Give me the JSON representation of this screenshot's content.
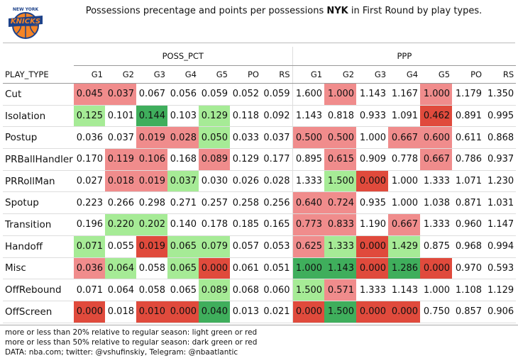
{
  "header": {
    "logo_top": "NEW YORK",
    "logo_text": "KNICKS",
    "title_before": "Possessions precentage and points per possessions ",
    "team": "NYK",
    "title_after": " in First Round by play types."
  },
  "table": {
    "groups": [
      "POSS_PCT",
      "PPP"
    ],
    "columns": [
      "PLAY_TYPE",
      "G1",
      "G2",
      "G3",
      "G4",
      "G5",
      "PO",
      "RS",
      "G1",
      "G2",
      "G3",
      "G4",
      "G5",
      "PO",
      "RS"
    ],
    "rows": [
      [
        "Cut",
        "0.045",
        "0.037",
        "0.067",
        "0.056",
        "0.059",
        "0.052",
        "0.059",
        "1.600",
        "1.000",
        "1.143",
        "1.167",
        "1.000",
        "1.179",
        "1.350"
      ],
      [
        "Isolation",
        "0.125",
        "0.101",
        "0.144",
        "0.103",
        "0.129",
        "0.118",
        "0.092",
        "1.143",
        "0.818",
        "0.933",
        "1.091",
        "0.462",
        "0.891",
        "0.995"
      ],
      [
        "Postup",
        "0.036",
        "0.037",
        "0.019",
        "0.028",
        "0.050",
        "0.033",
        "0.037",
        "0.500",
        "0.500",
        "1.000",
        "0.667",
        "0.600",
        "0.611",
        "0.868"
      ],
      [
        "PRBallHandler",
        "0.170",
        "0.119",
        "0.106",
        "0.168",
        "0.089",
        "0.129",
        "0.177",
        "0.895",
        "0.615",
        "0.909",
        "0.778",
        "0.667",
        "0.786",
        "0.937"
      ],
      [
        "PRRollMan",
        "0.027",
        "0.018",
        "0.019",
        "0.037",
        "0.030",
        "0.026",
        "0.028",
        "1.333",
        "1.500",
        "0.000",
        "1.000",
        "1.333",
        "1.071",
        "1.230"
      ],
      [
        "Spotup",
        "0.223",
        "0.266",
        "0.298",
        "0.271",
        "0.257",
        "0.258",
        "0.256",
        "0.640",
        "0.724",
        "0.935",
        "1.000",
        "1.038",
        "0.871",
        "1.031"
      ],
      [
        "Transition",
        "0.196",
        "0.220",
        "0.202",
        "0.140",
        "0.178",
        "0.185",
        "0.165",
        "0.773",
        "0.833",
        "1.190",
        "0.667",
        "1.333",
        "0.960",
        "1.147"
      ],
      [
        "Handoff",
        "0.071",
        "0.055",
        "0.019",
        "0.065",
        "0.079",
        "0.057",
        "0.053",
        "0.625",
        "1.333",
        "0.000",
        "1.429",
        "0.875",
        "0.968",
        "0.994"
      ],
      [
        "Misc",
        "0.036",
        "0.064",
        "0.058",
        "0.065",
        "0.000",
        "0.061",
        "0.051",
        "1.000",
        "1.143",
        "0.000",
        "1.286",
        "0.000",
        "0.970",
        "0.593"
      ],
      [
        "OffRebound",
        "0.071",
        "0.064",
        "0.058",
        "0.065",
        "0.089",
        "0.068",
        "0.060",
        "1.500",
        "0.571",
        "1.333",
        "1.143",
        "1.000",
        "1.108",
        "1.129"
      ],
      [
        "OffScreen",
        "0.000",
        "0.018",
        "0.010",
        "0.000",
        "0.040",
        "0.013",
        "0.021",
        "0.000",
        "1.500",
        "0.000",
        "0.000",
        "0.750",
        "0.857",
        "0.906"
      ]
    ],
    "cell_colors": [
      [
        "#f08c8c",
        "#f08c8c",
        null,
        null,
        null,
        null,
        null,
        null,
        "#f08c8c",
        null,
        null,
        "#f08c8c",
        null,
        null
      ],
      [
        "#a6eb96",
        null,
        "#3fae5c",
        null,
        "#a6eb96",
        null,
        null,
        null,
        null,
        null,
        null,
        "#e04a3c",
        null,
        null
      ],
      [
        null,
        null,
        "#f08c8c",
        "#f08c8c",
        "#a6eb96",
        null,
        null,
        "#f08c8c",
        "#f08c8c",
        null,
        "#f08c8c",
        "#f08c8c",
        null,
        null
      ],
      [
        null,
        "#f08c8c",
        "#f08c8c",
        null,
        "#f08c8c",
        null,
        null,
        null,
        "#f08c8c",
        null,
        null,
        "#f08c8c",
        null,
        null
      ],
      [
        null,
        "#f08c8c",
        "#f08c8c",
        "#a6eb96",
        null,
        null,
        null,
        null,
        "#a6eb96",
        "#e04a3c",
        null,
        null,
        null,
        null
      ],
      [
        null,
        null,
        null,
        null,
        null,
        null,
        null,
        "#f08c8c",
        "#f08c8c",
        null,
        null,
        null,
        null,
        null
      ],
      [
        null,
        "#a6eb96",
        "#a6eb96",
        null,
        null,
        null,
        null,
        "#f08c8c",
        "#f08c8c",
        null,
        "#f08c8c",
        null,
        null,
        null
      ],
      [
        "#a6eb96",
        null,
        "#e04a3c",
        "#a6eb96",
        "#a6eb96",
        null,
        null,
        "#f08c8c",
        "#a6eb96",
        "#e04a3c",
        "#a6eb96",
        null,
        null,
        null
      ],
      [
        "#f08c8c",
        "#a6eb96",
        null,
        "#a6eb96",
        "#e04a3c",
        null,
        null,
        "#3fae5c",
        "#3fae5c",
        "#e04a3c",
        "#3fae5c",
        "#e04a3c",
        null,
        null
      ],
      [
        null,
        null,
        null,
        null,
        "#a6eb96",
        null,
        null,
        "#a6eb96",
        "#f08c8c",
        null,
        null,
        null,
        null,
        null
      ],
      [
        "#e04a3c",
        null,
        "#e04a3c",
        "#e04a3c",
        "#3fae5c",
        null,
        null,
        "#e04a3c",
        "#3fae5c",
        "#e04a3c",
        "#e04a3c",
        null,
        null,
        null
      ]
    ]
  },
  "notes": [
    "more or less than 20% relative to regular season: light green or red",
    "more or less than 50% relative to regular season: dark green or red",
    "DATA: nba.com; twitter: @vshufinskiy, Telegram: @nbaatlantic"
  ]
}
